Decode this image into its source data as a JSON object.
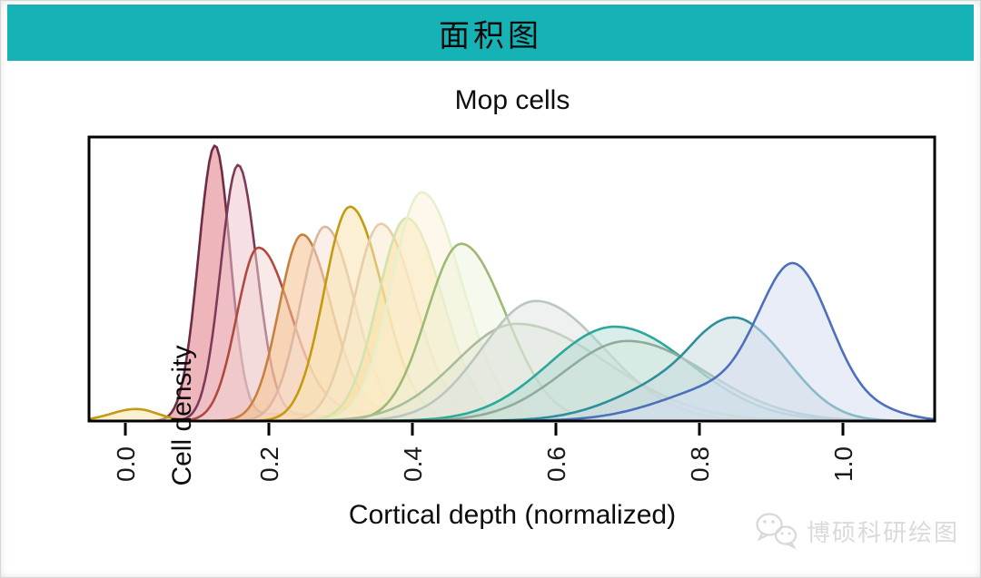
{
  "page": {
    "header_title": "面积图",
    "watermark_text": "博硕科研绘图"
  },
  "colors": {
    "header_bg": "#15b3b5",
    "frame": "#000000",
    "tick_label": "#1a1a1a",
    "watermark": "#dadada"
  },
  "chart_data": {
    "type": "area",
    "subtype": "overlapping-density-curves",
    "title": "Mop cells",
    "xlabel": "Cortical depth (normalized)",
    "ylabel": "Cell density",
    "xlim": [
      -0.052,
      1.129
    ],
    "ylim_note": "y axis unlabeled (density), peak heights given as fraction of panel height",
    "grid": false,
    "legend": false,
    "x_ticks": [
      {
        "label": "0.0",
        "value": 0.0
      },
      {
        "label": "0.2",
        "value": 0.2
      },
      {
        "label": "0.4",
        "value": 0.4
      },
      {
        "label": "0.6",
        "value": 0.6
      },
      {
        "label": "0.8",
        "value": 0.8
      },
      {
        "label": "1.0",
        "value": 1.0
      }
    ],
    "series": [
      {
        "name": "maroon",
        "peak_x": 0.125,
        "peak_height": 0.96,
        "color": "#6e2c46",
        "fill": "#e2868e",
        "fill_opacity": 0.6,
        "components": [
          {
            "mu": 0.125,
            "sl": 0.023,
            "sr": 0.021,
            "h": 0.96
          },
          {
            "mu": 0.22,
            "sl": 0.05,
            "sr": 0.04,
            "h": 0.025
          }
        ]
      },
      {
        "name": "wine-pink",
        "peak_x": 0.157,
        "peak_height": 0.89,
        "color": "#7d3b58",
        "fill": "#f0c6cd",
        "fill_opacity": 0.55,
        "components": [
          {
            "mu": 0.157,
            "sl": 0.024,
            "sr": 0.026,
            "h": 0.89
          },
          {
            "mu": 0.25,
            "sl": 0.06,
            "sr": 0.05,
            "h": 0.02
          }
        ]
      },
      {
        "name": "brick-red",
        "peak_x": 0.185,
        "peak_height": 0.62,
        "color": "#b1493e",
        "fill": "#f2d5d2",
        "fill_opacity": 0.5,
        "components": [
          {
            "mu": 0.185,
            "sl": 0.03,
            "sr": 0.045,
            "h": 0.6
          },
          {
            "mu": 0.29,
            "sl": 0.06,
            "sr": 0.07,
            "h": 0.03
          }
        ]
      },
      {
        "name": "orange",
        "peak_x": 0.246,
        "peak_height": 0.66,
        "color": "#c8803f",
        "fill": "#f5c18c",
        "fill_opacity": 0.55,
        "components": [
          {
            "mu": 0.246,
            "sl": 0.032,
            "sr": 0.04,
            "h": 0.64
          },
          {
            "mu": 0.34,
            "sl": 0.07,
            "sr": 0.08,
            "h": 0.03
          }
        ]
      },
      {
        "name": "peach",
        "peak_x": 0.278,
        "peak_height": 0.68,
        "color": "#deb69c",
        "fill": "#f7e0d4",
        "fill_opacity": 0.5,
        "components": [
          {
            "mu": 0.278,
            "sl": 0.034,
            "sr": 0.042,
            "h": 0.68
          }
        ]
      },
      {
        "name": "gold",
        "peak_x": 0.313,
        "peak_height": 0.75,
        "color": "#c49a10",
        "fill": "#f8e3ae",
        "fill_opacity": 0.55,
        "components": [
          {
            "mu": 0.313,
            "sl": 0.036,
            "sr": 0.046,
            "h": 0.75
          },
          {
            "mu": 0.015,
            "sl": 0.035,
            "sr": 0.03,
            "h": 0.042
          }
        ]
      },
      {
        "name": "tan",
        "peak_x": 0.356,
        "peak_height": 0.69,
        "color": "#e7cda8",
        "fill": "#f8e9cb",
        "fill_opacity": 0.5,
        "components": [
          {
            "mu": 0.356,
            "sl": 0.038,
            "sr": 0.048,
            "h": 0.69
          }
        ]
      },
      {
        "name": "pale-lime",
        "peak_x": 0.392,
        "peak_height": 0.71,
        "color": "#d3e3ab",
        "fill": "#f9de9e",
        "fill_opacity": 0.5,
        "components": [
          {
            "mu": 0.392,
            "sl": 0.04,
            "sr": 0.05,
            "h": 0.71
          }
        ]
      },
      {
        "name": "cream",
        "peak_x": 0.413,
        "peak_height": 0.8,
        "color": "#e6f0cc",
        "fill": "#fbf2d8",
        "fill_opacity": 0.5,
        "components": [
          {
            "mu": 0.413,
            "sl": 0.042,
            "sr": 0.056,
            "h": 0.8
          }
        ]
      },
      {
        "name": "olive-green",
        "peak_x": 0.468,
        "peak_height": 0.62,
        "color": "#9cba74",
        "fill": "#ebf1da",
        "fill_opacity": 0.45,
        "components": [
          {
            "mu": 0.468,
            "sl": 0.048,
            "sr": 0.062,
            "h": 0.62
          }
        ]
      },
      {
        "name": "sage-wide",
        "peak_x": 0.545,
        "peak_height": 0.34,
        "color": "#a9bc9b",
        "fill": "#dfe7d6",
        "fill_opacity": 0.4,
        "components": [
          {
            "mu": 0.545,
            "sl": 0.085,
            "sr": 0.125,
            "h": 0.34
          }
        ]
      },
      {
        "name": "gray",
        "peak_x": 0.572,
        "peak_height": 0.42,
        "color": "#b9c7c0",
        "fill": "#dde3df",
        "fill_opacity": 0.5,
        "components": [
          {
            "mu": 0.572,
            "sl": 0.075,
            "sr": 0.095,
            "h": 0.42
          }
        ]
      },
      {
        "name": "teal",
        "peak_x": 0.682,
        "peak_height": 0.33,
        "color": "#2ba89a",
        "fill": "#abd9d0",
        "fill_opacity": 0.45,
        "components": [
          {
            "mu": 0.682,
            "sl": 0.092,
            "sr": 0.105,
            "h": 0.33
          }
        ]
      },
      {
        "name": "gray-sage",
        "peak_x": 0.7,
        "peak_height": 0.28,
        "color": "#8fab9b",
        "fill": "#d8e3dc",
        "fill_opacity": 0.4,
        "components": [
          {
            "mu": 0.7,
            "sl": 0.09,
            "sr": 0.11,
            "h": 0.28
          }
        ]
      },
      {
        "name": "teal-blue",
        "peak_x": 0.868,
        "peak_height": 0.39,
        "color": "#2d8f9c",
        "fill": "#c5d9dd",
        "fill_opacity": 0.5,
        "components": [
          {
            "mu": 0.868,
            "sl": 0.055,
            "sr": 0.063,
            "h": 0.3
          },
          {
            "mu": 0.79,
            "sl": 0.09,
            "sr": 0.05,
            "h": 0.16
          }
        ]
      },
      {
        "name": "steel-blue",
        "peak_x": 0.935,
        "peak_height": 0.55,
        "color": "#4c70ba",
        "fill": "#d6def0",
        "fill_opacity": 0.55,
        "components": [
          {
            "mu": 0.935,
            "sl": 0.046,
            "sr": 0.05,
            "h": 0.5
          },
          {
            "mu": 0.855,
            "sl": 0.095,
            "sr": 0.055,
            "h": 0.135
          },
          {
            "mu": 1.045,
            "sl": 0.05,
            "sr": 0.045,
            "h": 0.032
          }
        ]
      }
    ]
  }
}
